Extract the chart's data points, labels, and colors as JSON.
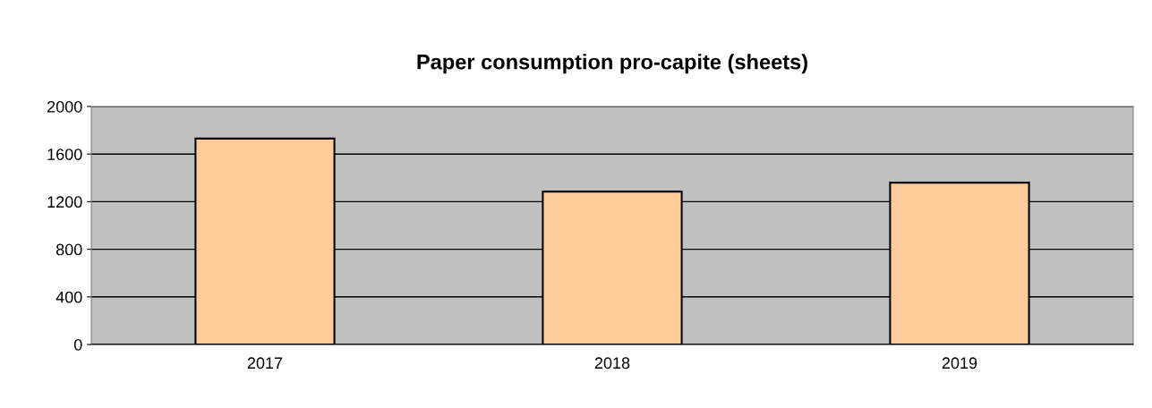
{
  "chart_data": {
    "type": "bar",
    "title": "Paper consumption pro-capite (sheets)",
    "categories": [
      "2017",
      "2018",
      "2019"
    ],
    "values": [
      1730,
      1285,
      1360
    ],
    "color": "#ffcc99",
    "ylim": [
      0,
      2000
    ],
    "yticks": [
      0,
      400,
      800,
      1200,
      1600,
      2000
    ],
    "grid": "y"
  }
}
